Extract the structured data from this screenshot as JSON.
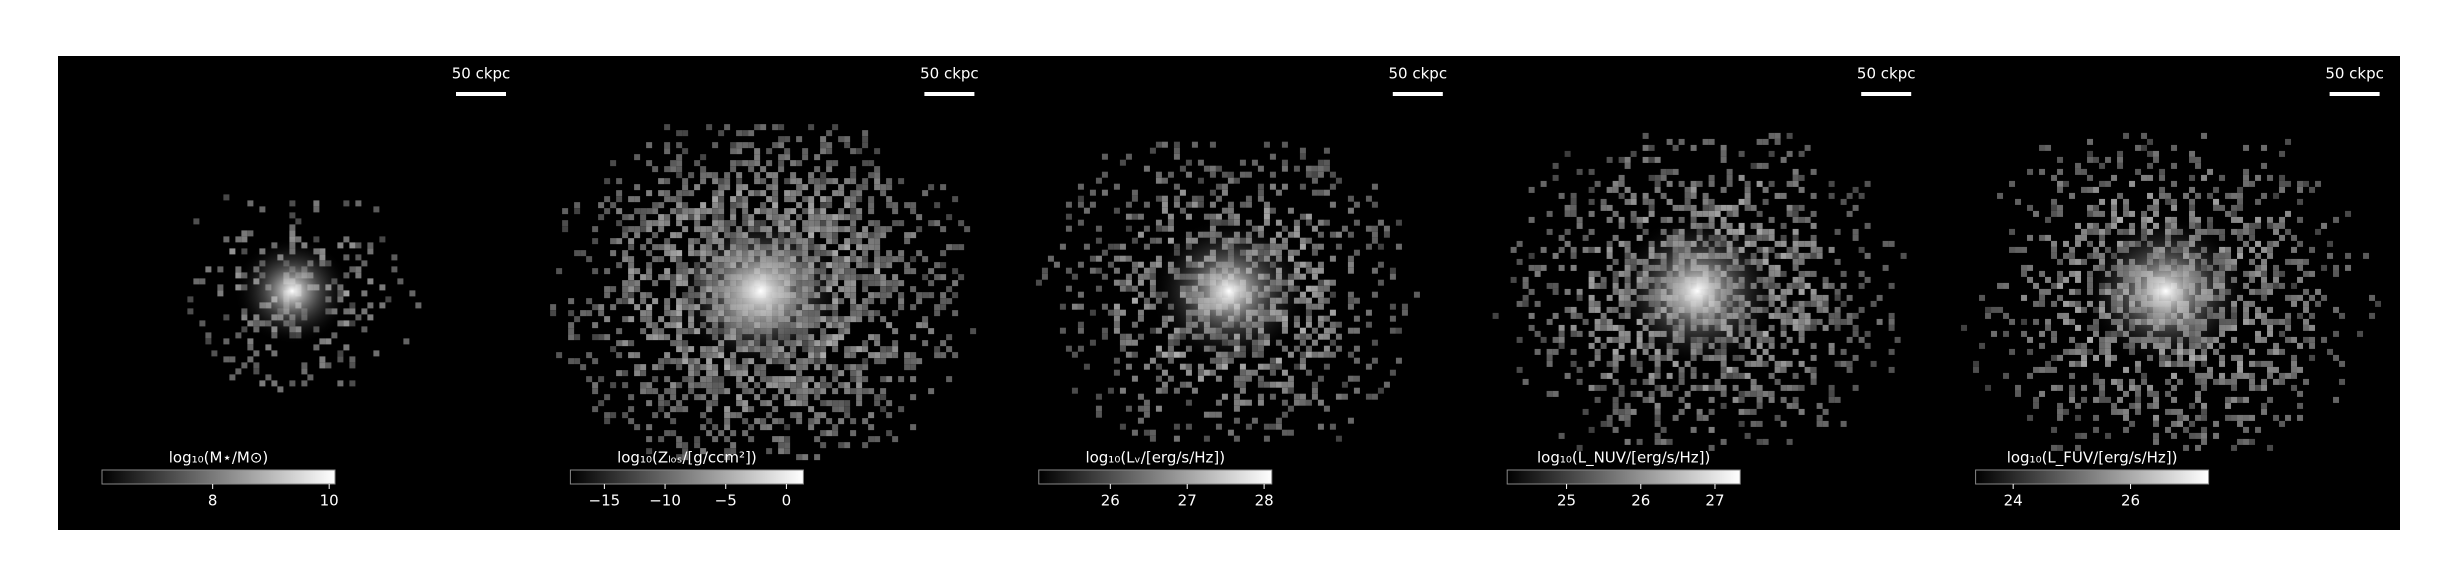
{
  "chart_data": [
    {
      "type": "image",
      "colorbar_label": "log₁₀(M⋆/M⊙)",
      "clim": [
        6.1,
        10.1
      ],
      "cticks": [
        8,
        10
      ],
      "scale_label": "50 ckpc",
      "extent": 0.55,
      "fill": 0.25
    },
    {
      "type": "image",
      "colorbar_label": "log₁₀(Zₗₒₛ/[g/ccm²])",
      "clim": [
        -17.8,
        1.4
      ],
      "cticks": [
        {
          "value": -15,
          "label": "−15"
        },
        {
          "value": -10,
          "label": "−10"
        },
        {
          "value": -5,
          "label": "−5"
        },
        0
      ],
      "scale_label": "50 ckpc",
      "extent": 0.95,
      "fill": 0.75
    },
    {
      "type": "image",
      "colorbar_label": "log₁₀(Lᵥ/[erg/s/Hz])",
      "clim": [
        25.07,
        28.1
      ],
      "cticks": [
        26,
        27,
        28
      ],
      "scale_label": "50 ckpc",
      "extent": 0.85,
      "fill": 0.45
    },
    {
      "type": "image",
      "colorbar_label": "log₁₀(L_NUV/[erg/s/Hz])",
      "clim": [
        24.2,
        27.34
      ],
      "cticks": [
        25,
        26,
        27
      ],
      "scale_label": "50 ckpc",
      "extent": 0.9,
      "fill": 0.5
    },
    {
      "type": "image",
      "colorbar_label": "log₁₀(L_FUV/[erg/s/Hz])",
      "clim": [
        23.36,
        27.33
      ],
      "cticks": [
        24,
        26
      ],
      "scale_label": "50 ckpc",
      "extent": 0.9,
      "fill": 0.5
    }
  ]
}
